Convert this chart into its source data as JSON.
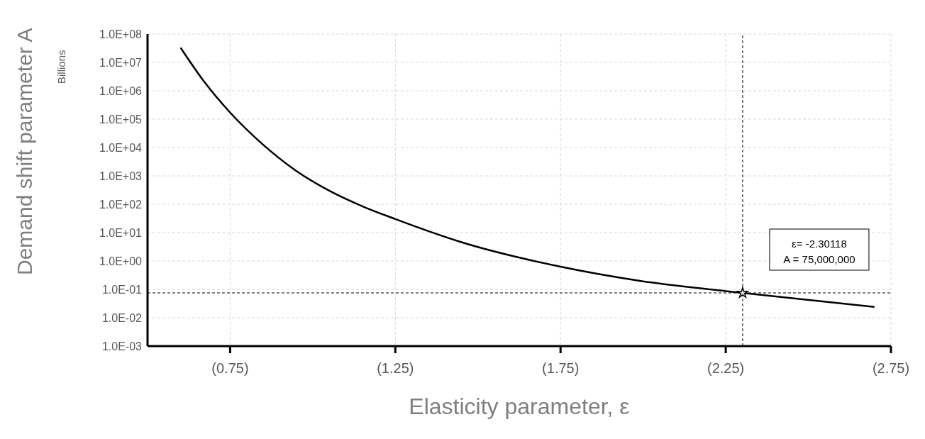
{
  "chart_data": {
    "type": "line",
    "xlabel": "Elasticity parameter, ε",
    "ylabel": "Demand shift parameter A",
    "log": "y",
    "grid": true,
    "marker": "none",
    "xlim": [
      -0.5,
      -2.75
    ],
    "xticks": [
      {
        "value": -0.75,
        "label": "(0.75)"
      },
      {
        "value": -1.25,
        "label": "(1.25)"
      },
      {
        "value": -1.75,
        "label": "(1.75)"
      },
      {
        "value": -2.25,
        "label": "(2.25)"
      },
      {
        "value": -2.75,
        "label": "(2.75)"
      }
    ],
    "ylim": [
      0.001,
      100000000
    ],
    "yticks": [
      {
        "value": 0.001,
        "label": "1.0E-03"
      },
      {
        "value": 0.01,
        "label": "1.0E-02"
      },
      {
        "value": 0.1,
        "label": "1.0E-01"
      },
      {
        "value": 1,
        "label": "1.0E+00"
      },
      {
        "value": 10,
        "label": "1.0E+01"
      },
      {
        "value": 100,
        "label": "1.0E+02"
      },
      {
        "value": 1000,
        "label": "1.0E+03"
      },
      {
        "value": 10000,
        "label": "1.0E+04"
      },
      {
        "value": 100000,
        "label": "1.0E+05"
      },
      {
        "value": 1000000,
        "label": "1.0E+06"
      },
      {
        "value": 10000000,
        "label": "1.0E+07"
      },
      {
        "value": 100000000,
        "label": "1.0E+08"
      }
    ],
    "series": [
      {
        "color": "#000000",
        "line_style": "solid",
        "x": [
          -0.6,
          -0.67,
          -0.75,
          -0.85,
          -0.95,
          -1.05,
          -1.15,
          -1.25,
          -1.45,
          -1.75,
          -1.99,
          -2.25,
          -2.7
        ],
        "values": [
          33000000,
          2200000,
          170000,
          12500,
          1500,
          300,
          85,
          30,
          4.6,
          0.63,
          0.2,
          0.087,
          0.024
        ]
      },
      {
        "type": "scatter",
        "color": "#d9d9d9",
        "marker": "star",
        "x": [
          -2.30118
        ],
        "values": [
          0.075
        ]
      }
    ],
    "ref_lines": [
      {
        "axis": "x",
        "value": -2.30118,
        "color": "#000000",
        "line_style": "dashed"
      },
      {
        "axis": "y",
        "value": 0.075,
        "color": "#000000",
        "line_style": "dashed"
      }
    ],
    "annotations": [
      "ε= -2.30118\nA = 75,000,000",
      "Billions"
    ]
  }
}
